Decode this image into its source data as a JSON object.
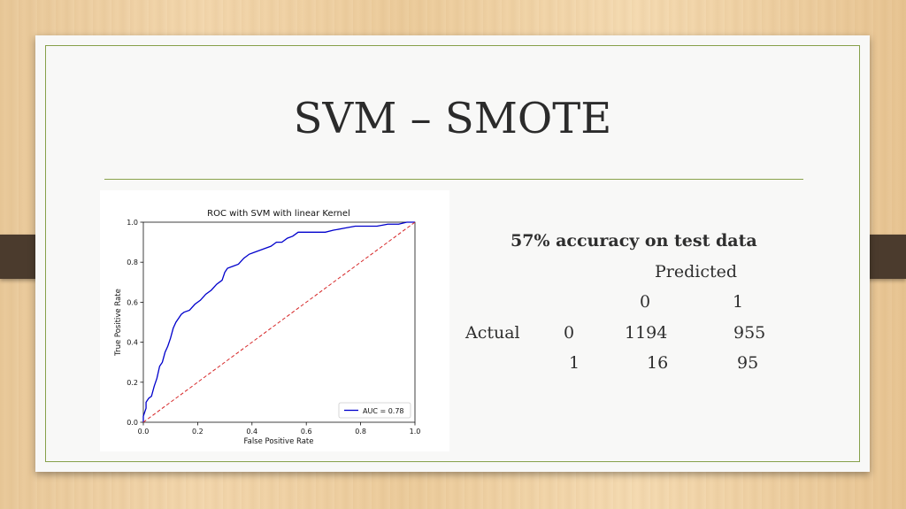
{
  "slide": {
    "title": "SVM – SMOTE"
  },
  "results": {
    "accuracy_text": "57% accuracy on test data",
    "predicted_label": "Predicted",
    "actual_label": "Actual",
    "pred_col_0": "0",
    "pred_col_1": "1",
    "row_0_label": "0",
    "row_1_label": "1",
    "cell_00": "1194",
    "cell_01": "955",
    "cell_10": "16",
    "cell_11": "95"
  },
  "chart_data": {
    "type": "line",
    "title": "ROC with SVM with linear Kernel",
    "xlabel": "False Positive Rate",
    "ylabel": "True Positive Rate",
    "xlim": [
      0.0,
      1.0
    ],
    "ylim": [
      0.0,
      1.0
    ],
    "xticks": [
      "0.0",
      "0.2",
      "0.4",
      "0.6",
      "0.8",
      "1.0"
    ],
    "yticks": [
      "0.0",
      "0.2",
      "0.4",
      "0.6",
      "0.8",
      "1.0"
    ],
    "grid": false,
    "legend_position": "lower-right",
    "series": [
      {
        "name": "AUC = 0.78",
        "color": "#0000cc",
        "style": "solid",
        "x": [
          0.0,
          0.0,
          0.01,
          0.01,
          0.02,
          0.03,
          0.04,
          0.05,
          0.06,
          0.07,
          0.08,
          0.09,
          0.1,
          0.11,
          0.12,
          0.13,
          0.14,
          0.15,
          0.17,
          0.19,
          0.21,
          0.23,
          0.25,
          0.27,
          0.29,
          0.3,
          0.31,
          0.33,
          0.35,
          0.37,
          0.39,
          0.41,
          0.43,
          0.45,
          0.47,
          0.49,
          0.51,
          0.53,
          0.55,
          0.57,
          0.6,
          0.63,
          0.67,
          0.7,
          0.74,
          0.78,
          0.82,
          0.86,
          0.9,
          0.94,
          0.97,
          1.0
        ],
        "y": [
          0.0,
          0.03,
          0.07,
          0.1,
          0.12,
          0.13,
          0.18,
          0.22,
          0.28,
          0.3,
          0.35,
          0.38,
          0.42,
          0.47,
          0.5,
          0.52,
          0.54,
          0.55,
          0.56,
          0.59,
          0.61,
          0.64,
          0.66,
          0.69,
          0.71,
          0.75,
          0.77,
          0.78,
          0.79,
          0.82,
          0.84,
          0.85,
          0.86,
          0.87,
          0.88,
          0.9,
          0.9,
          0.92,
          0.93,
          0.95,
          0.95,
          0.95,
          0.95,
          0.96,
          0.97,
          0.98,
          0.98,
          0.98,
          0.99,
          0.99,
          1.0,
          1.0
        ]
      },
      {
        "name": "",
        "color": "#d62728",
        "style": "dashed",
        "x": [
          0.0,
          1.0
        ],
        "y": [
          0.0,
          1.0
        ]
      }
    ]
  }
}
